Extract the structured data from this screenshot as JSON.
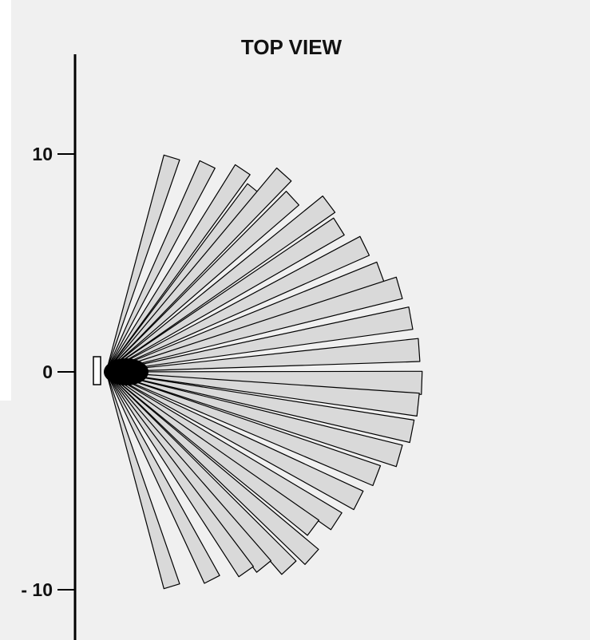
{
  "title": "TOP VIEW",
  "y_axis": {
    "range": [
      -12,
      15
    ],
    "ticks": [
      {
        "value": 10,
        "label": "10"
      },
      {
        "value": 0,
        "label": "0"
      },
      {
        "value": -10,
        "label": "- 10"
      }
    ]
  },
  "colors": {
    "background": "#f0f0f0",
    "beam_fill": "#d9d9d9",
    "outline": "#000000",
    "origin_fill": "#000000"
  },
  "beams_description_note": "",
  "beams": [
    {
      "angle_deg": 73,
      "length": 10.3
    },
    {
      "angle_deg": 64,
      "length": 10.6
    },
    {
      "angle_deg": 56,
      "length": 11.2
    },
    {
      "angle_deg": 51,
      "length": 10.8
    },
    {
      "angle_deg": 48,
      "length": 12.2
    },
    {
      "angle_deg": 43,
      "length": 11.7
    },
    {
      "angle_deg": 37,
      "length": 12.8
    },
    {
      "angle_deg": 32,
      "length": 12.6
    },
    {
      "angle_deg": 26,
      "length": 13.2
    },
    {
      "angle_deg": 20,
      "length": 13.4
    },
    {
      "angle_deg": 16,
      "length": 14.0
    },
    {
      "angle_deg": 10,
      "length": 14.2
    },
    {
      "angle_deg": 4,
      "length": 14.4
    },
    {
      "angle_deg": -2,
      "length": 14.5
    },
    {
      "angle_deg": -6,
      "length": 14.4
    },
    {
      "angle_deg": -11,
      "length": 14.3
    },
    {
      "angle_deg": -16,
      "length": 14.0
    },
    {
      "angle_deg": -21,
      "length": 13.3
    },
    {
      "angle_deg": -27,
      "length": 13.0
    },
    {
      "angle_deg": -33,
      "length": 12.6
    },
    {
      "angle_deg": -37,
      "length": 11.9
    },
    {
      "angle_deg": -42,
      "length": 12.7
    },
    {
      "angle_deg": -47,
      "length": 12.3
    },
    {
      "angle_deg": -51,
      "length": 11.5
    },
    {
      "angle_deg": -55,
      "length": 11.2
    },
    {
      "angle_deg": -63,
      "length": 10.7
    },
    {
      "angle_deg": -73,
      "length": 10.3
    }
  ]
}
